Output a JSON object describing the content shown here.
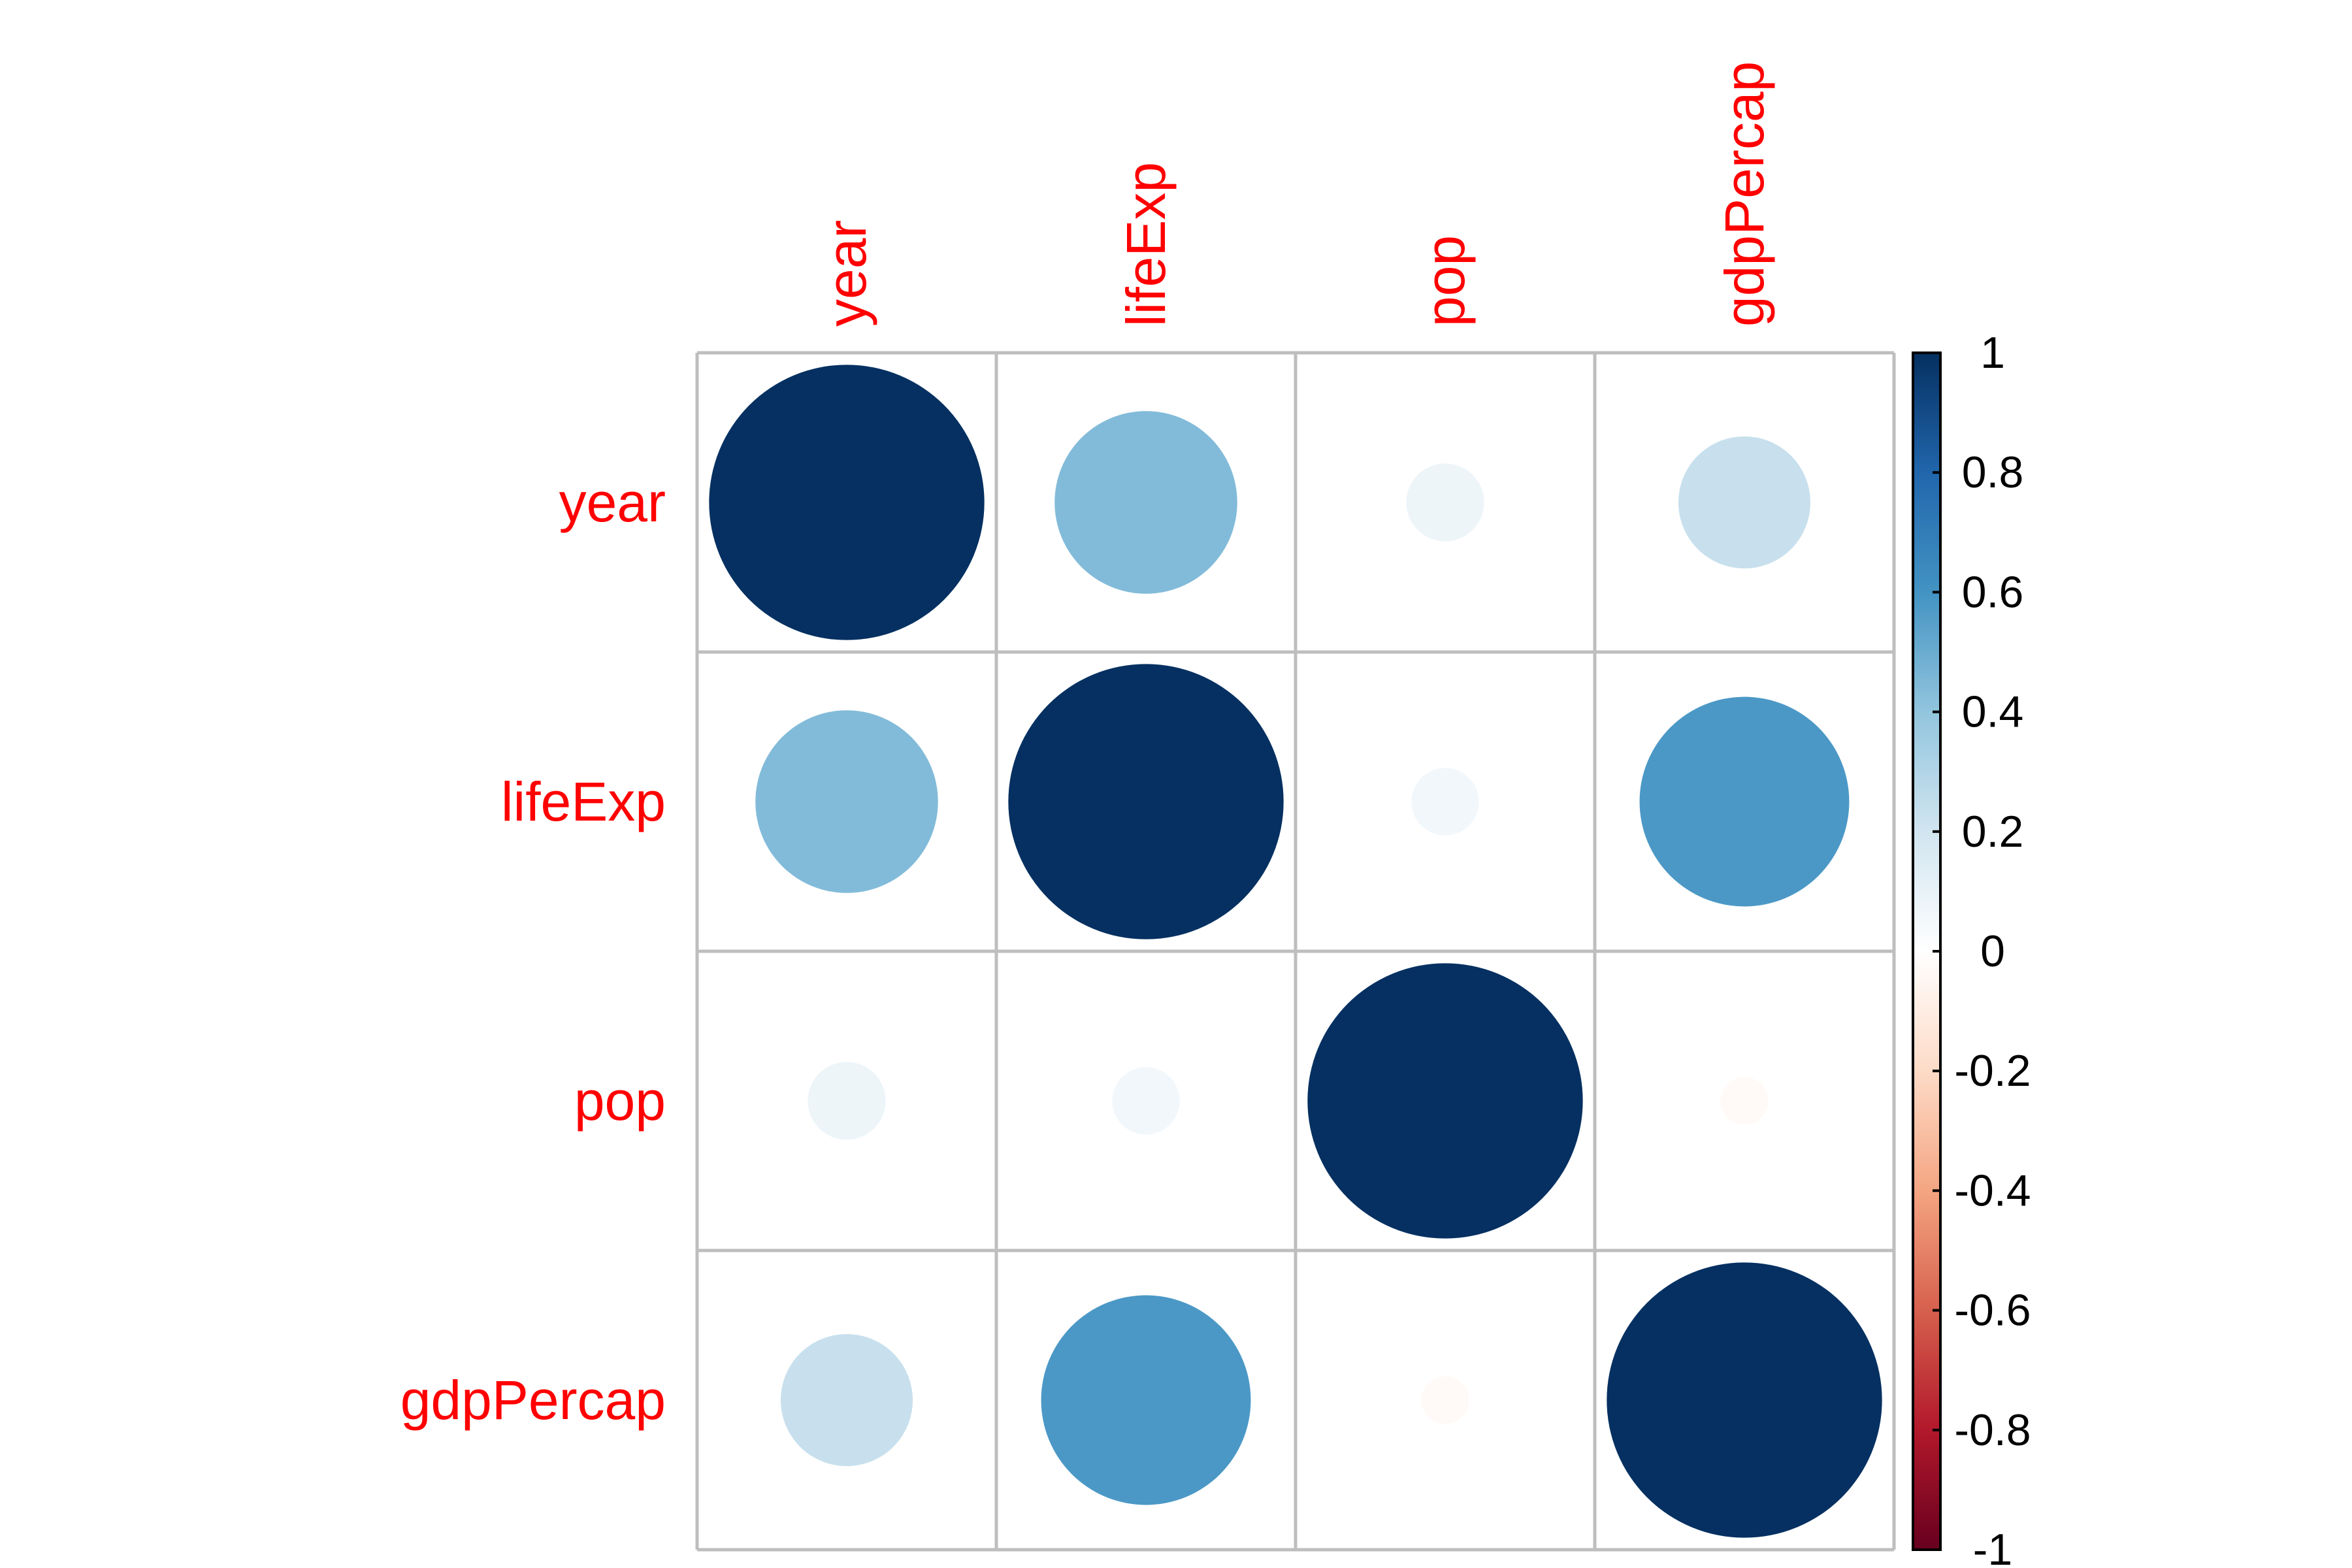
{
  "chart_data": {
    "type": "heatmap",
    "method": "circle",
    "title": "",
    "variables": [
      "year",
      "lifeExp",
      "pop",
      "gdpPercap"
    ],
    "matrix": [
      [
        1.0,
        0.44,
        0.08,
        0.23
      ],
      [
        0.44,
        1.0,
        0.06,
        0.58
      ],
      [
        0.08,
        0.06,
        1.0,
        -0.03
      ],
      [
        0.23,
        0.58,
        -0.03,
        1.0
      ]
    ],
    "colorbar": {
      "range": [
        -1,
        1
      ],
      "ticks": [
        "1",
        "0.8",
        "0.6",
        "0.4",
        "0.2",
        "0",
        "-0.2",
        "-0.4",
        "-0.6",
        "-0.8",
        "-1"
      ],
      "placement": "right"
    },
    "colors": {
      "label": "#ff0000",
      "grid": "#bebebe",
      "scale": [
        "#67001f",
        "#b2182b",
        "#d6604d",
        "#f4a582",
        "#fddbc7",
        "#ffffff",
        "#d1e5f0",
        "#92c5de",
        "#4393c3",
        "#2166ac",
        "#053061"
      ]
    }
  }
}
